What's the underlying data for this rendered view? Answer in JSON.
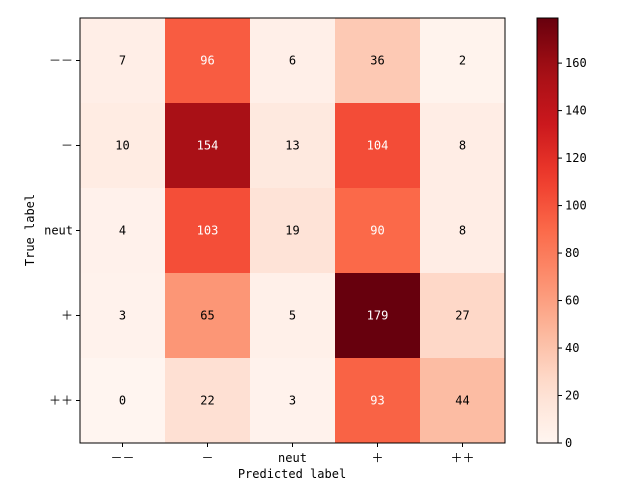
{
  "chart_data": {
    "type": "heatmap",
    "xlabel": "Predicted label",
    "ylabel": "True label",
    "x_categories": [
      "－－",
      "－",
      "neut",
      "＋",
      "＋＋"
    ],
    "y_categories": [
      "－－",
      "－",
      "neut",
      "＋",
      "＋＋"
    ],
    "values": [
      [
        7,
        96,
        6,
        36,
        2
      ],
      [
        10,
        154,
        13,
        104,
        8
      ],
      [
        4,
        103,
        19,
        90,
        8
      ],
      [
        3,
        65,
        5,
        179,
        27
      ],
      [
        0,
        22,
        3,
        93,
        44
      ]
    ],
    "colorbar": {
      "range": [
        0,
        179
      ],
      "ticks": [
        0,
        20,
        40,
        60,
        80,
        100,
        120,
        140,
        160
      ],
      "colormap": "Reds"
    },
    "grid": false
  }
}
